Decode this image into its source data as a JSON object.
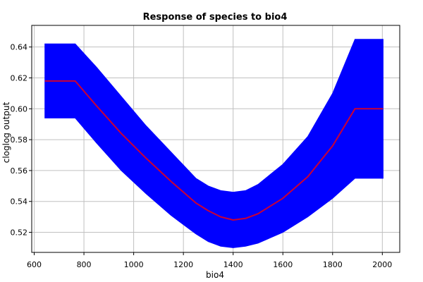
{
  "colors": {
    "band": "#0000ff",
    "line": "#cc0033",
    "grid": "#c0c0c0",
    "axis": "#000000"
  },
  "chart_data": {
    "type": "area",
    "title": "Response of species to bio4",
    "xlabel": "bio4",
    "ylabel": "cloglog output",
    "xlim": [
      590,
      2070
    ],
    "ylim": [
      0.507,
      0.654
    ],
    "xticks": [
      600,
      800,
      1000,
      1200,
      1400,
      1600,
      1800,
      2000
    ],
    "yticks": [
      0.52,
      0.54,
      0.56,
      0.58,
      0.6,
      0.62,
      0.64
    ],
    "ytick_labels": [
      "0.52",
      "0.54",
      "0.56",
      "0.58",
      "0.60",
      "0.62",
      "0.64"
    ],
    "grid": true,
    "legend": "none",
    "series": [
      {
        "x": [
          643,
          765,
          850,
          950,
          1050,
          1150,
          1250,
          1300,
          1350,
          1400,
          1450,
          1500,
          1600,
          1700,
          1800,
          1890,
          2003
        ],
        "mean": [
          0.618,
          0.618,
          0.602,
          0.584,
          0.568,
          0.553,
          0.539,
          0.534,
          0.53,
          0.528,
          0.529,
          0.532,
          0.542,
          0.556,
          0.576,
          0.6,
          0.6
        ],
        "upper": [
          0.642,
          0.642,
          0.627,
          0.608,
          0.589,
          0.572,
          0.555,
          0.55,
          0.547,
          0.546,
          0.547,
          0.551,
          0.564,
          0.582,
          0.61,
          0.645,
          0.645
        ],
        "lower": [
          0.594,
          0.594,
          0.578,
          0.56,
          0.545,
          0.531,
          0.519,
          0.514,
          0.511,
          0.51,
          0.511,
          0.513,
          0.52,
          0.53,
          0.542,
          0.555,
          0.555
        ]
      }
    ]
  }
}
